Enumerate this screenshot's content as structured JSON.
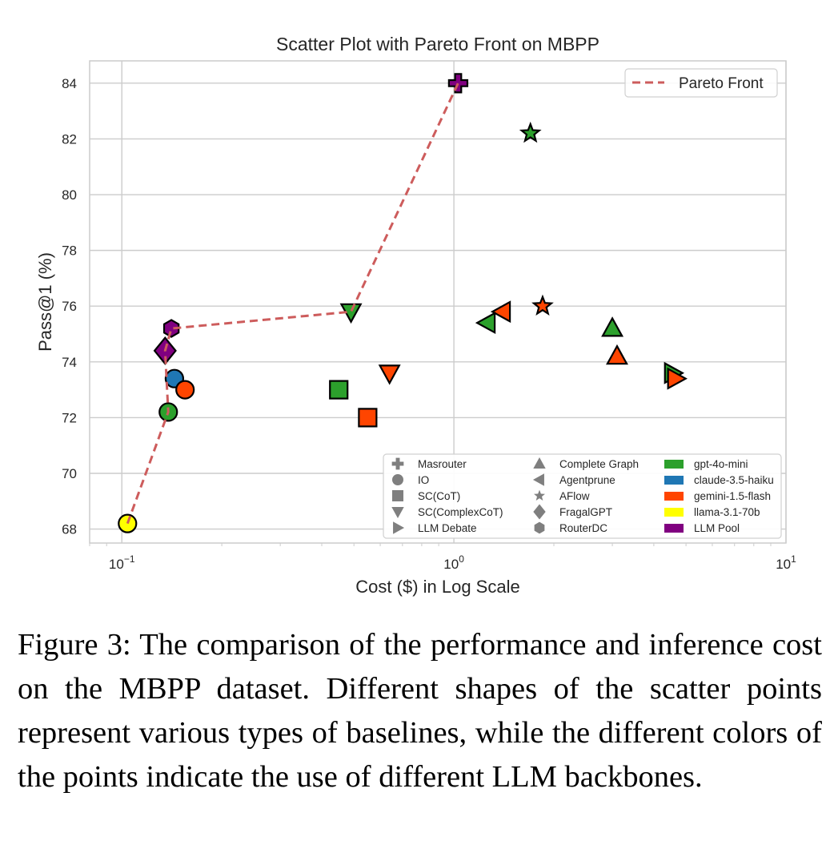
{
  "chart_data": {
    "type": "scatter",
    "title": "Scatter Plot with Pareto Front on MBPP",
    "xlabel": "Cost ($) in Log Scale",
    "ylabel": "Pass@1 (%)",
    "x_scale": "log",
    "xlim": [
      0.08,
      10
    ],
    "ylim": [
      67.5,
      84.8
    ],
    "x_ticks": [
      0.1,
      1,
      10
    ],
    "y_ticks": [
      68,
      70,
      72,
      74,
      76,
      78,
      80,
      82,
      84
    ],
    "grid": true,
    "legend_position": "top-right",
    "colors": {
      "gpt-4o-mini": "#2ca02c",
      "claude-3.5-haiku": "#1f77b4",
      "gemini-1.5-flash": "#ff4500",
      "llama-3.1-70b": "#ffff00",
      "LLM Pool": "#800080",
      "pareto": "#cd5c5c",
      "legend_gray": "#7f7f7f"
    },
    "pareto_front": {
      "name": "Pareto Front",
      "points": [
        [
          0.104,
          68.2
        ],
        [
          0.138,
          72.2
        ],
        [
          0.135,
          74.4
        ],
        [
          0.141,
          75.2
        ],
        [
          0.49,
          75.8
        ],
        [
          1.03,
          84.0
        ]
      ]
    },
    "points": [
      {
        "method": "Masrouter",
        "llm": "LLM Pool",
        "x": 1.03,
        "y": 84.0
      },
      {
        "method": "AFlow",
        "llm": "gpt-4o-mini",
        "x": 1.7,
        "y": 82.2
      },
      {
        "method": "AFlow",
        "llm": "gemini-1.5-flash",
        "x": 1.85,
        "y": 76.0
      },
      {
        "method": "SC(ComplexCoT)",
        "llm": "gpt-4o-mini",
        "x": 0.49,
        "y": 75.8
      },
      {
        "method": "SC(ComplexCoT)",
        "llm": "gemini-1.5-flash",
        "x": 0.64,
        "y": 73.6
      },
      {
        "method": "Agentprune",
        "llm": "gemini-1.5-flash",
        "x": 1.4,
        "y": 75.8
      },
      {
        "method": "Agentprune",
        "llm": "gpt-4o-mini",
        "x": 1.26,
        "y": 75.4
      },
      {
        "method": "Complete Graph",
        "llm": "gpt-4o-mini",
        "x": 3.0,
        "y": 75.2
      },
      {
        "method": "Complete Graph",
        "llm": "gemini-1.5-flash",
        "x": 3.1,
        "y": 74.2
      },
      {
        "method": "LLM Debate",
        "llm": "gpt-4o-mini",
        "x": 4.55,
        "y": 73.6
      },
      {
        "method": "LLM Debate",
        "llm": "gemini-1.5-flash",
        "x": 4.65,
        "y": 73.4
      },
      {
        "method": "SC(CoT)",
        "llm": "gpt-4o-mini",
        "x": 0.45,
        "y": 73.0
      },
      {
        "method": "SC(CoT)",
        "llm": "gemini-1.5-flash",
        "x": 0.55,
        "y": 72.0
      },
      {
        "method": "RouterDC",
        "llm": "LLM Pool",
        "x": 0.141,
        "y": 75.2
      },
      {
        "method": "FragalGPT",
        "llm": "LLM Pool",
        "x": 0.135,
        "y": 74.4
      },
      {
        "method": "IO",
        "llm": "claude-3.5-haiku",
        "x": 0.144,
        "y": 73.4
      },
      {
        "method": "IO",
        "llm": "gemini-1.5-flash",
        "x": 0.155,
        "y": 73.0
      },
      {
        "method": "IO",
        "llm": "gpt-4o-mini",
        "x": 0.138,
        "y": 72.2
      },
      {
        "method": "IO",
        "llm": "llama-3.1-70b",
        "x": 0.104,
        "y": 68.2
      }
    ],
    "legend_methods": [
      {
        "label": "Masrouter",
        "marker": "plus"
      },
      {
        "label": "IO",
        "marker": "circle"
      },
      {
        "label": "SC(CoT)",
        "marker": "square"
      },
      {
        "label": "SC(ComplexCoT)",
        "marker": "triangle-down"
      },
      {
        "label": "LLM Debate",
        "marker": "triangle-right"
      },
      {
        "label": "Complete Graph",
        "marker": "triangle-up"
      },
      {
        "label": "Agentprune",
        "marker": "triangle-left"
      },
      {
        "label": "AFlow",
        "marker": "star"
      },
      {
        "label": "FragalGPT",
        "marker": "diamond"
      },
      {
        "label": "RouterDC",
        "marker": "hexagon"
      }
    ],
    "legend_llms": [
      {
        "label": "gpt-4o-mini",
        "color": "#2ca02c"
      },
      {
        "label": "claude-3.5-haiku",
        "color": "#1f77b4"
      },
      {
        "label": "gemini-1.5-flash",
        "color": "#ff4500"
      },
      {
        "label": "llama-3.1-70b",
        "color": "#ffff00"
      },
      {
        "label": "LLM Pool",
        "color": "#800080"
      }
    ]
  },
  "caption": "Figure 3: The comparison of the performance and inference cost on the MBPP dataset. Different shapes of the scatter points represent various types of baselines, while the different colors of the points indicate the use of different LLM backbones."
}
